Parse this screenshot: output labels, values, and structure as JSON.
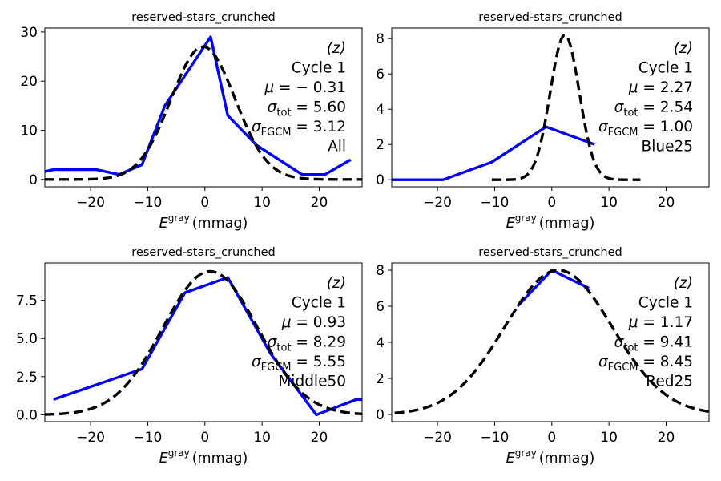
{
  "chart_data": [
    {
      "type": "line",
      "title": "reserved-stars_crunched",
      "xlabel": {
        "symbol": "E",
        "superscript": "gray",
        "unit": "(mmag)"
      },
      "xlim": [
        -28,
        27.5
      ],
      "ylim": [
        -1.5,
        30.8
      ],
      "xticks": [
        -20,
        -10,
        0,
        10,
        20
      ],
      "yticks": [
        0,
        10,
        20,
        30
      ],
      "ytick_labels": [
        "0",
        "10",
        "20",
        "30"
      ],
      "annotation": {
        "band": "(z)",
        "cycle": "Cycle 1",
        "mu": "− 0.31",
        "sigma_tot": "5.60",
        "sigma_fgcm": "3.12",
        "group": "All"
      },
      "series": [
        {
          "style": "solid",
          "color": "#0000ff",
          "points": [
            [
              -28,
              1.6
            ],
            [
              -26.5,
              2
            ],
            [
              -19,
              2
            ],
            [
              -15,
              1
            ],
            [
              -11,
              3
            ],
            [
              -7,
              15
            ],
            [
              -3,
              22
            ],
            [
              1,
              29
            ],
            [
              4,
              13
            ],
            [
              9,
              7
            ],
            [
              13,
              4
            ],
            [
              17,
              1
            ],
            [
              21,
              1
            ],
            [
              25.5,
              4
            ]
          ]
        },
        {
          "style": "dashed",
          "color": "#000000",
          "gaussian": {
            "mu": -0.31,
            "sigma": 5.6,
            "amplitude": 27,
            "x_range": [
              -28,
              27.5
            ]
          }
        }
      ]
    },
    {
      "type": "line",
      "title": "reserved-stars_crunched",
      "xlabel": {
        "symbol": "E",
        "superscript": "gray",
        "unit": "(mmag)"
      },
      "xlim": [
        -28,
        27.5
      ],
      "ylim": [
        -0.4,
        8.6
      ],
      "xticks": [
        -20,
        -10,
        0,
        10,
        20
      ],
      "yticks": [
        0,
        2,
        4,
        6,
        8
      ],
      "ytick_labels": [
        "0",
        "2",
        "4",
        "6",
        "8"
      ],
      "annotation": {
        "band": "(z)",
        "cycle": "Cycle 1",
        "mu": "2.27",
        "sigma_tot": "2.54",
        "sigma_fgcm": "1.00",
        "group": "Blue25"
      },
      "series": [
        {
          "style": "solid",
          "color": "#0000ff",
          "points": [
            [
              -28,
              0
            ],
            [
              -19,
              0
            ],
            [
              -10.5,
              1
            ],
            [
              -1,
              3
            ],
            [
              7.5,
              2
            ]
          ]
        },
        {
          "style": "dashed",
          "color": "#000000",
          "gaussian": {
            "mu": 2.27,
            "sigma": 2.54,
            "amplitude": 8.2,
            "x_range": [
              -10.5,
              15.5
            ]
          }
        }
      ]
    },
    {
      "type": "line",
      "title": "reserved-stars_crunched",
      "xlabel": {
        "symbol": "E",
        "superscript": "gray",
        "unit": "(mmag)"
      },
      "xlim": [
        -28,
        27.5
      ],
      "ylim": [
        -0.45,
        9.95
      ],
      "xticks": [
        -20,
        -10,
        0,
        10,
        20
      ],
      "yticks": [
        0,
        2.5,
        5,
        7.5
      ],
      "ytick_labels": [
        "0.0",
        "2.5",
        "5.0",
        "7.5"
      ],
      "annotation": {
        "band": "(z)",
        "cycle": "Cycle 1",
        "mu": "0.93",
        "sigma_tot": "8.29",
        "sigma_fgcm": "5.55",
        "group": "Middle50"
      },
      "series": [
        {
          "style": "solid",
          "color": "#0000ff",
          "points": [
            [
              -26.5,
              1
            ],
            [
              -11,
              3
            ],
            [
              -3.5,
              8
            ],
            [
              4,
              9
            ],
            [
              11.5,
              4
            ],
            [
              19.5,
              0
            ],
            [
              26.5,
              1
            ],
            [
              27.5,
              1
            ]
          ]
        },
        {
          "style": "dashed",
          "color": "#000000",
          "gaussian": {
            "mu": 0.93,
            "sigma": 8.29,
            "amplitude": 9.4,
            "x_range": [
              -28,
              27.5
            ]
          }
        }
      ]
    },
    {
      "type": "line",
      "title": "reserved-stars_crunched",
      "xlabel": {
        "symbol": "E",
        "superscript": "gray",
        "unit": "(mmag)"
      },
      "xlim": [
        -28,
        27.5
      ],
      "ylim": [
        -0.4,
        8.4
      ],
      "xticks": [
        -20,
        -10,
        0,
        10,
        20
      ],
      "yticks": [
        0,
        2,
        4,
        6,
        8
      ],
      "ytick_labels": [
        "0",
        "2",
        "4",
        "6",
        "8"
      ],
      "annotation": {
        "band": "(z)",
        "cycle": "Cycle 1",
        "mu": "1.17",
        "sigma_tot": "9.41",
        "sigma_fgcm": "8.45",
        "group": "Red25"
      },
      "series": [
        {
          "style": "solid",
          "color": "#0000ff",
          "points": [
            [
              -6,
              6
            ],
            [
              0,
              8
            ],
            [
              6.5,
              7
            ]
          ]
        },
        {
          "style": "dashed",
          "color": "#000000",
          "gaussian": {
            "mu": 1.17,
            "sigma": 9.41,
            "amplitude": 8.0,
            "x_range": [
              -27.5,
              27.5
            ]
          }
        }
      ]
    }
  ]
}
